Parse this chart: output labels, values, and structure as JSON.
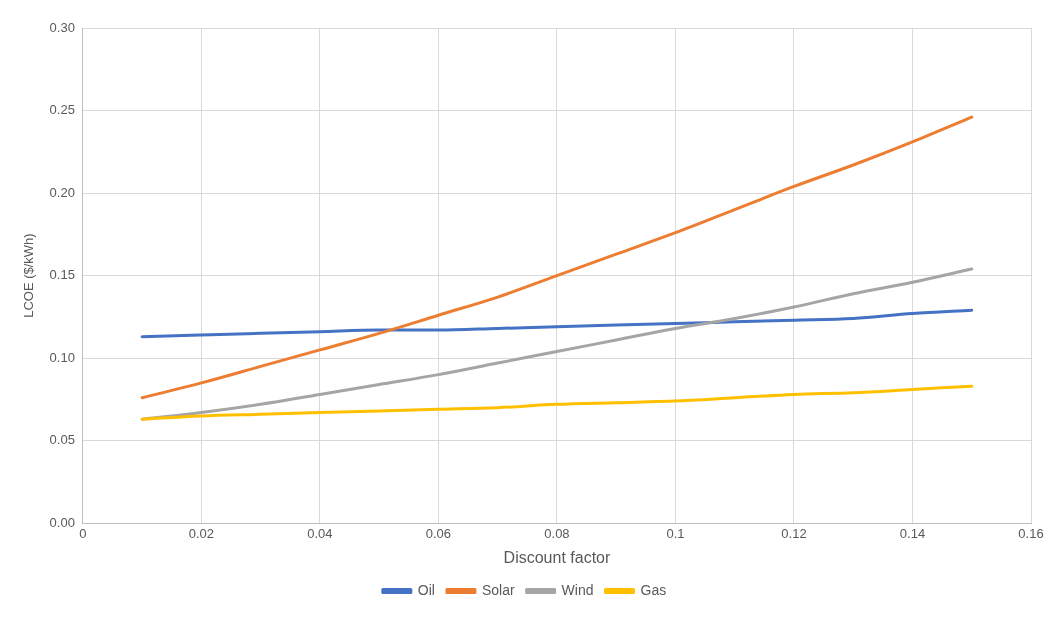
{
  "chart_data": {
    "type": "line",
    "xlabel": "Discount factor",
    "ylabel": "LCOE ($/kWh)",
    "x": [
      0.01,
      0.02,
      0.03,
      0.04,
      0.05,
      0.06,
      0.07,
      0.08,
      0.09,
      0.1,
      0.11,
      0.12,
      0.13,
      0.14,
      0.15
    ],
    "series": [
      {
        "name": "Oil",
        "color": "#4472c4",
        "values": [
          0.113,
          0.114,
          0.115,
          0.116,
          0.117,
          0.117,
          0.118,
          0.119,
          0.12,
          0.121,
          0.122,
          0.123,
          0.124,
          0.127,
          0.129
        ]
      },
      {
        "name": "Solar",
        "color": "#ed7d31",
        "values": [
          0.076,
          0.085,
          0.095,
          0.105,
          0.115,
          0.126,
          0.137,
          0.15,
          0.163,
          0.176,
          0.19,
          0.204,
          0.217,
          0.231,
          0.246
        ]
      },
      {
        "name": "Wind",
        "color": "#a5a5a5",
        "values": [
          0.063,
          0.067,
          0.072,
          0.078,
          0.084,
          0.09,
          0.097,
          0.104,
          0.111,
          0.118,
          0.124,
          0.131,
          0.139,
          0.146,
          0.154
        ]
      },
      {
        "name": "Gas",
        "color": "#ffc000",
        "values": [
          0.063,
          0.065,
          0.066,
          0.067,
          0.068,
          0.069,
          0.07,
          0.072,
          0.073,
          0.074,
          0.076,
          0.078,
          0.079,
          0.081,
          0.083
        ]
      }
    ],
    "xlim": [
      0,
      0.16
    ],
    "xticks": [
      0,
      0.02,
      0.04,
      0.06,
      0.08,
      0.1,
      0.12,
      0.14,
      0.16
    ],
    "ylim": [
      0,
      0.3
    ],
    "yticks": [
      {
        "value": 0,
        "label": "0.00"
      },
      {
        "value": 0.05,
        "label": "0.05"
      },
      {
        "value": 0.1,
        "label": "0.10"
      },
      {
        "value": 0.15,
        "label": "0.15"
      },
      {
        "value": 0.2,
        "label": "0.20"
      },
      {
        "value": 0.25,
        "label": "0.25"
      },
      {
        "value": 0.3,
        "label": "0.30"
      }
    ],
    "grid": true,
    "legend": "bottom",
    "marker": "none",
    "line_style": "solid"
  }
}
